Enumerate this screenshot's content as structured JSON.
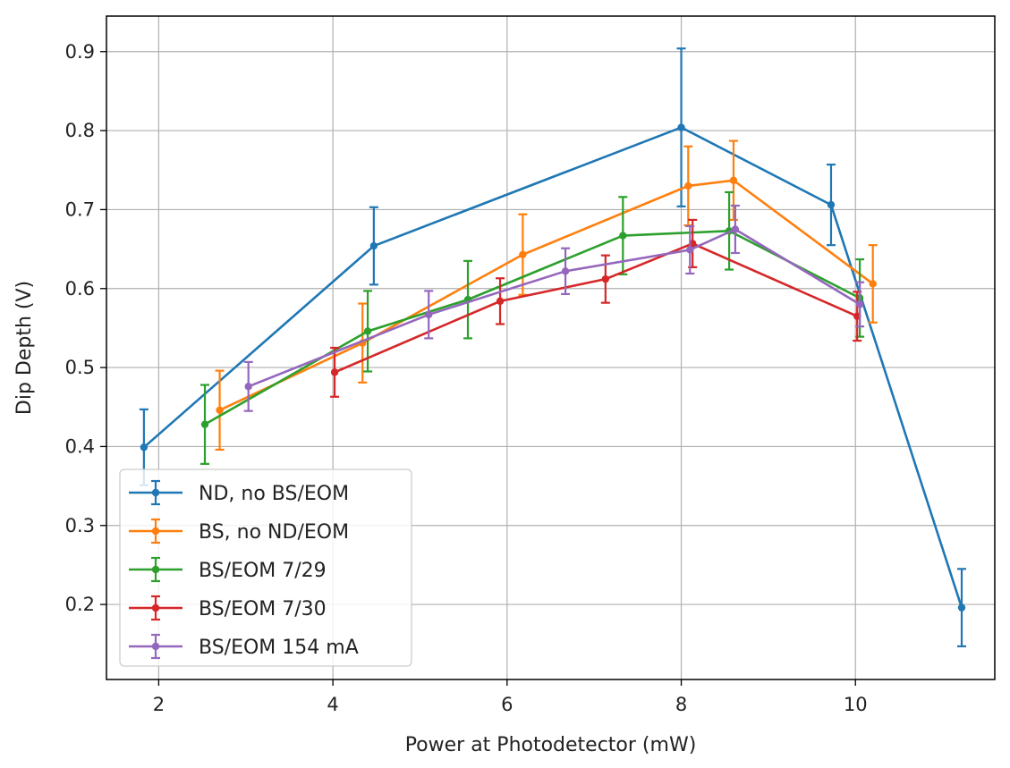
{
  "chart_data": {
    "type": "line",
    "xlabel": "Power at Photodetector (mW)",
    "ylabel": "Dip Depth (V)",
    "xlim": [
      1.4,
      11.6
    ],
    "ylim": [
      0.105,
      0.945
    ],
    "xticks": [
      2,
      4,
      6,
      8,
      10
    ],
    "yticks": [
      0.2,
      0.3,
      0.4,
      0.5,
      0.6,
      0.7,
      0.8,
      0.9
    ],
    "xtick_labels": [
      "2",
      "4",
      "6",
      "8",
      "10"
    ],
    "ytick_labels": [
      "0.2",
      "0.3",
      "0.4",
      "0.5",
      "0.6",
      "0.7",
      "0.8",
      "0.9"
    ],
    "grid": true,
    "legend_position": "lower-left",
    "error_bars": true,
    "series": [
      {
        "name": "ND, no BS/EOM",
        "color": "#1f77b4",
        "x": [
          1.83,
          4.47,
          8.0,
          9.72,
          11.22
        ],
        "y": [
          0.399,
          0.654,
          0.804,
          0.706,
          0.196
        ],
        "yerr": [
          0.048,
          0.049,
          0.1,
          0.051,
          0.049
        ]
      },
      {
        "name": "BS, no ND/EOM",
        "color": "#ff7f0e",
        "x": [
          2.7,
          4.34,
          6.18,
          8.08,
          8.6,
          10.2
        ],
        "y": [
          0.446,
          0.531,
          0.643,
          0.73,
          0.737,
          0.606
        ],
        "yerr": [
          0.05,
          0.05,
          0.051,
          0.05,
          0.05,
          0.049
        ]
      },
      {
        "name": "BS/EOM 7/29",
        "color": "#2ca02c",
        "x": [
          2.53,
          4.4,
          5.55,
          7.33,
          8.55,
          10.05
        ],
        "y": [
          0.428,
          0.546,
          0.586,
          0.667,
          0.673,
          0.588
        ],
        "yerr": [
          0.05,
          0.051,
          0.049,
          0.049,
          0.049,
          0.049
        ]
      },
      {
        "name": "BS/EOM 7/30",
        "color": "#d62728",
        "x": [
          4.02,
          5.92,
          7.13,
          8.13,
          10.02
        ],
        "y": [
          0.494,
          0.584,
          0.612,
          0.657,
          0.565
        ],
        "yerr": [
          0.031,
          0.029,
          0.03,
          0.03,
          0.031
        ]
      },
      {
        "name": "BS/EOM 154 mA",
        "color": "#9467bd",
        "x": [
          3.03,
          5.1,
          6.67,
          8.1,
          8.62,
          10.05
        ],
        "y": [
          0.476,
          0.567,
          0.622,
          0.649,
          0.675,
          0.58
        ],
        "yerr": [
          0.031,
          0.03,
          0.029,
          0.03,
          0.03,
          0.028
        ]
      }
    ]
  }
}
